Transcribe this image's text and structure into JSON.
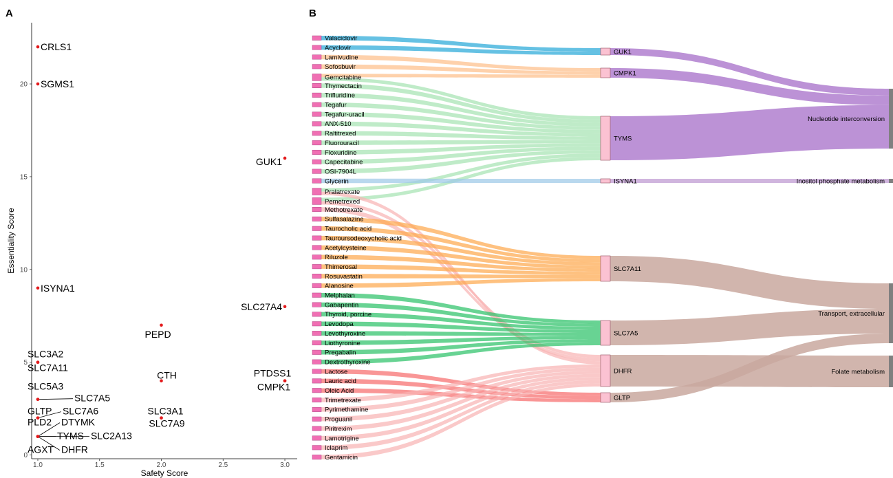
{
  "panels": {
    "a": "A",
    "b": "B"
  },
  "chart_data": [
    {
      "type": "scatter",
      "xlabel": "Safety Score",
      "ylabel": "Essentiality Score",
      "xlim": [
        0.95,
        3.1
      ],
      "ylim": [
        -0.2,
        23.3
      ],
      "xticks": [
        "1.0",
        "1.5",
        "2.0",
        "2.5",
        "3.0"
      ],
      "yticks": [
        "0",
        "5",
        "10",
        "15",
        "20"
      ],
      "point_color": "#e31a1c",
      "points": [
        {
          "x": 1,
          "y": 22,
          "label": "CRLS1"
        },
        {
          "x": 1,
          "y": 20,
          "label": "SGMS1"
        },
        {
          "x": 3,
          "y": 16,
          "label": "GUK1"
        },
        {
          "x": 1,
          "y": 9,
          "label": "ISYNA1"
        },
        {
          "x": 3,
          "y": 8,
          "label": "SLC27A4"
        },
        {
          "x": 2,
          "y": 7,
          "label": "PEPD"
        },
        {
          "x": 1,
          "y": 5,
          "label": "SLC3A2"
        },
        {
          "x": 1,
          "y": 5,
          "label": "SLC7A11"
        },
        {
          "x": 2,
          "y": 4,
          "label": "CTH"
        },
        {
          "x": 3,
          "y": 4,
          "label": "PTDSS1"
        },
        {
          "x": 3,
          "y": 4,
          "label": "CMPK1"
        },
        {
          "x": 1,
          "y": 3,
          "label": "SLC5A3"
        },
        {
          "x": 1,
          "y": 3,
          "label": "SLC7A5"
        },
        {
          "x": 1,
          "y": 2,
          "label": "GLTP"
        },
        {
          "x": 1,
          "y": 2,
          "label": "SLC7A6"
        },
        {
          "x": 2,
          "y": 2,
          "label": "SLC3A1"
        },
        {
          "x": 2,
          "y": 2,
          "label": "SLC7A9"
        },
        {
          "x": 1,
          "y": 1,
          "label": "PLD2"
        },
        {
          "x": 1,
          "y": 1,
          "label": "DTYMK"
        },
        {
          "x": 1,
          "y": 1,
          "label": "TYMS"
        },
        {
          "x": 1,
          "y": 1,
          "label": "SLC2A13"
        },
        {
          "x": 1,
          "y": 1,
          "label": "AGXT"
        },
        {
          "x": 1,
          "y": 1,
          "label": "DHFR"
        }
      ]
    },
    {
      "type": "sankey",
      "drugs": [
        "Valaciclovir",
        "Acyclovir",
        "Lamivudine",
        "Sofosbuvir",
        "Gemcitabine",
        "Thymectacin",
        "Trifluridine",
        "Tegafur",
        "Tegafur-uracil",
        "ANX-510",
        "Raltitrexed",
        "Fluorouracil",
        "Floxuridine",
        "Capecitabine",
        "OSI-7904L",
        "Glycerin",
        "Pralatrexate",
        "Pemetrexed",
        "Methotrexate",
        "Sulfasalazine",
        "Taurocholic acid",
        "Tauroursodeoxycholic acid",
        "Acetylcysteine",
        "Riluzole",
        "Thimerosal",
        "Rosuvastatin",
        "Alanosine",
        "Melphalan",
        "Gabapentin",
        "Thyroid, porcine",
        "Levodopa",
        "Levothyroxine",
        "Liothyronine",
        "Pregabalin",
        "Dextrothyroxine",
        "Lactose",
        "Lauric acid",
        "Oleic Acid",
        "Trimetrexate",
        "Pyrimethamine",
        "Proguanil",
        "Piritrexim",
        "Lamotrigine",
        "Iclaprim",
        "Gentamicin"
      ],
      "genes": [
        "GUK1",
        "CMPK1",
        "TYMS",
        "ISYNA1",
        "SLC7A11",
        "SLC7A5",
        "DHFR",
        "GLTP"
      ],
      "pathways": [
        "Nucleotide interconversion",
        "Inositol phosphate metabolism",
        "Transport, extracellular",
        "Folate metabolism"
      ],
      "gene_colors": {
        "GUK1": "#2aa9d8",
        "CMPK1": "#fdbf8a",
        "TYMS": "#a6e3b3",
        "ISYNA1": "#9ec9e8",
        "SLC7A11": "#fda94f",
        "SLC7A5": "#2ec26a",
        "DHFR": "#f8b4b4",
        "GLTP": "#f76d6d"
      },
      "pathway_colors": {
        "Nucleotide interconversion": "#b07fcf",
        "Inositol phosphate metabolism": "#c8a8d8",
        "Transport, extracellular": "#c9a89f",
        "Folate metabolism": "#c9a89f"
      },
      "drug_node_color": "#f06fb3",
      "gene_node_color": "#fbc2d2",
      "links_drug_gene": [
        [
          "Valaciclovir",
          "GUK1"
        ],
        [
          "Acyclovir",
          "GUK1"
        ],
        [
          "Lamivudine",
          "CMPK1"
        ],
        [
          "Sofosbuvir",
          "CMPK1"
        ],
        [
          "Gemcitabine",
          "CMPK1"
        ],
        [
          "Gemcitabine",
          "TYMS"
        ],
        [
          "Thymectacin",
          "TYMS"
        ],
        [
          "Trifluridine",
          "TYMS"
        ],
        [
          "Tegafur",
          "TYMS"
        ],
        [
          "Tegafur-uracil",
          "TYMS"
        ],
        [
          "ANX-510",
          "TYMS"
        ],
        [
          "Raltitrexed",
          "TYMS"
        ],
        [
          "Fluorouracil",
          "TYMS"
        ],
        [
          "Floxuridine",
          "TYMS"
        ],
        [
          "Capecitabine",
          "TYMS"
        ],
        [
          "OSI-7904L",
          "TYMS"
        ],
        [
          "Pralatrexate",
          "TYMS"
        ],
        [
          "Pemetrexed",
          "TYMS"
        ],
        [
          "Glycerin",
          "ISYNA1"
        ],
        [
          "Pemetrexed",
          "DHFR"
        ],
        [
          "Methotrexate",
          "DHFR"
        ],
        [
          "Pralatrexate",
          "DHFR"
        ],
        [
          "Sulfasalazine",
          "SLC7A11"
        ],
        [
          "Taurocholic acid",
          "SLC7A11"
        ],
        [
          "Tauroursodeoxycholic acid",
          "SLC7A11"
        ],
        [
          "Acetylcysteine",
          "SLC7A11"
        ],
        [
          "Riluzole",
          "SLC7A11"
        ],
        [
          "Thimerosal",
          "SLC7A11"
        ],
        [
          "Rosuvastatin",
          "SLC7A11"
        ],
        [
          "Alanosine",
          "SLC7A11"
        ],
        [
          "Melphalan",
          "SLC7A5"
        ],
        [
          "Gabapentin",
          "SLC7A5"
        ],
        [
          "Thyroid, porcine",
          "SLC7A5"
        ],
        [
          "Levodopa",
          "SLC7A5"
        ],
        [
          "Levothyroxine",
          "SLC7A5"
        ],
        [
          "Liothyronine",
          "SLC7A5"
        ],
        [
          "Pregabalin",
          "SLC7A5"
        ],
        [
          "Dextrothyroxine",
          "SLC7A5"
        ],
        [
          "Lactose",
          "GLTP"
        ],
        [
          "Lauric acid",
          "GLTP"
        ],
        [
          "Oleic Acid",
          "GLTP"
        ],
        [
          "Trimetrexate",
          "DHFR"
        ],
        [
          "Pyrimethamine",
          "DHFR"
        ],
        [
          "Proguanil",
          "DHFR"
        ],
        [
          "Piritrexim",
          "DHFR"
        ],
        [
          "Lamotrigine",
          "DHFR"
        ],
        [
          "Iclaprim",
          "DHFR"
        ],
        [
          "Gentamicin",
          "DHFR"
        ]
      ],
      "links_gene_pathway": [
        [
          "GUK1",
          "Nucleotide interconversion"
        ],
        [
          "CMPK1",
          "Nucleotide interconversion"
        ],
        [
          "TYMS",
          "Nucleotide interconversion"
        ],
        [
          "ISYNA1",
          "Inositol phosphate metabolism"
        ],
        [
          "SLC7A11",
          "Transport, extracellular"
        ],
        [
          "SLC7A5",
          "Transport, extracellular"
        ],
        [
          "GLTP",
          "Transport, extracellular"
        ],
        [
          "DHFR",
          "Folate metabolism"
        ]
      ]
    }
  ]
}
